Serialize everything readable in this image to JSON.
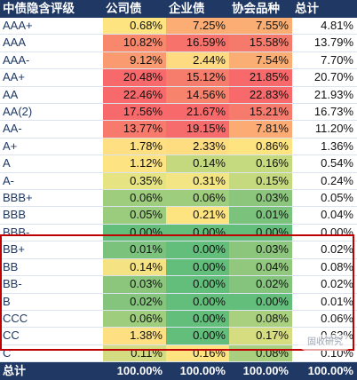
{
  "header": {
    "col0": "中债隐含评级",
    "col1": "公司债",
    "col2": "企业债",
    "col3": "协会品种",
    "col4": "总计"
  },
  "rows": [
    {
      "label": "AAA+",
      "v1": "0.68%",
      "v2": "7.25%",
      "v3": "7.55%",
      "total": "4.81%",
      "c1": "#fde481",
      "c2": "#fbad73",
      "c3": "#fbae73"
    },
    {
      "label": "AAA",
      "v1": "10.82%",
      "v2": "16.59%",
      "v3": "15.58%",
      "total": "13.79%",
      "c1": "#f8876c",
      "c2": "#f6726a",
      "c3": "#f67a6b"
    },
    {
      "label": "AAA-",
      "v1": "9.12%",
      "v2": "2.44%",
      "v3": "7.54%",
      "total": "7.70%",
      "c1": "#f99a70",
      "c2": "#fedb80",
      "c3": "#fbae73"
    },
    {
      "label": "AA+",
      "v1": "20.48%",
      "v2": "15.12%",
      "v3": "21.85%",
      "total": "20.70%",
      "c1": "#f8696b",
      "c2": "#f67d6c",
      "c3": "#f8696b"
    },
    {
      "label": "AA",
      "v1": "22.46%",
      "v2": "14.56%",
      "v3": "22.83%",
      "total": "21.93%",
      "c1": "#f8696b",
      "c2": "#f7836c",
      "c3": "#f8696b"
    },
    {
      "label": "AA(2)",
      "v1": "17.56%",
      "v2": "21.67%",
      "v3": "15.21%",
      "total": "16.73%",
      "c1": "#f8696b",
      "c2": "#f8696b",
      "c3": "#f67b6c"
    },
    {
      "label": "AA-",
      "v1": "13.77%",
      "v2": "19.15%",
      "v3": "7.81%",
      "total": "11.20%",
      "c1": "#f87a6c",
      "c2": "#f66b6b",
      "c3": "#fbab73"
    },
    {
      "label": "A+",
      "v1": "1.78%",
      "v2": "2.33%",
      "v3": "0.86%",
      "total": "1.36%",
      "c1": "#fee082",
      "c2": "#fedc80",
      "c3": "#fde481"
    },
    {
      "label": "A",
      "v1": "1.12%",
      "v2": "0.14%",
      "v3": "0.16%",
      "total": "0.54%",
      "c1": "#fde382",
      "c2": "#c4d97e",
      "c3": "#c5d97e"
    },
    {
      "label": "A-",
      "v1": "0.35%",
      "v2": "0.31%",
      "v3": "0.15%",
      "total": "0.24%",
      "c1": "#e6e383",
      "c2": "#f3e584",
      "c3": "#c5d97e"
    },
    {
      "label": "BBB+",
      "v1": "0.06%",
      "v2": "0.06%",
      "v3": "0.03%",
      "total": "0.05%",
      "c1": "#9fcd7e",
      "c2": "#9fcd7e",
      "c3": "#8cc67c"
    },
    {
      "label": "BBB",
      "v1": "0.05%",
      "v2": "0.21%",
      "v3": "0.01%",
      "total": "0.04%",
      "c1": "#9bcc7e",
      "c2": "#fde481",
      "c3": "#7bc27c"
    },
    {
      "label": "BBB-",
      "v1": "0.00%",
      "v2": "0.00%",
      "v3": "0.00%",
      "total": "0.00%",
      "c1": "#63be7b",
      "c2": "#63be7b",
      "c3": "#63be7b"
    },
    {
      "label": "BB+",
      "v1": "0.01%",
      "v2": "0.00%",
      "v3": "0.03%",
      "total": "0.02%",
      "c1": "#7bc27c",
      "c2": "#63be7b",
      "c3": "#8cc67c"
    },
    {
      "label": "BB",
      "v1": "0.14%",
      "v2": "0.00%",
      "v3": "0.04%",
      "total": "0.08%",
      "c1": "#f5e383",
      "c2": "#63be7b",
      "c3": "#92c87d"
    },
    {
      "label": "BB-",
      "v1": "0.03%",
      "v2": "0.00%",
      "v3": "0.02%",
      "total": "0.02%",
      "c1": "#8cc67c",
      "c2": "#63be7b",
      "c3": "#84c47c"
    },
    {
      "label": "B",
      "v1": "0.02%",
      "v2": "0.00%",
      "v3": "0.00%",
      "total": "0.01%",
      "c1": "#84c47c",
      "c2": "#63be7b",
      "c3": "#63be7b"
    },
    {
      "label": "CCC",
      "v1": "0.06%",
      "v2": "0.00%",
      "v3": "0.08%",
      "total": "0.06%",
      "c1": "#9fcd7e",
      "c2": "#63be7b",
      "c3": "#a9d07f"
    },
    {
      "label": "CC",
      "v1": "1.38%",
      "v2": "0.00%",
      "v3": "0.17%",
      "total": "0.63%",
      "c1": "#fee082",
      "c2": "#63be7b",
      "c3": "#d6dd81"
    },
    {
      "label": "C",
      "v1": "0.11%",
      "v2": "0.16%",
      "v3": "0.08%",
      "total": "0.10%",
      "c1": "#d3dc81",
      "c2": "#fde481",
      "c3": "#a9d07f"
    }
  ],
  "footer": {
    "label": "总计",
    "v1": "100.00%",
    "v2": "100.00%",
    "v3": "100.00%",
    "total": "100.00%"
  },
  "watermark": "固收研究",
  "colors": {
    "header_bg": "#1f3864",
    "highlight_border": "#c00000"
  }
}
